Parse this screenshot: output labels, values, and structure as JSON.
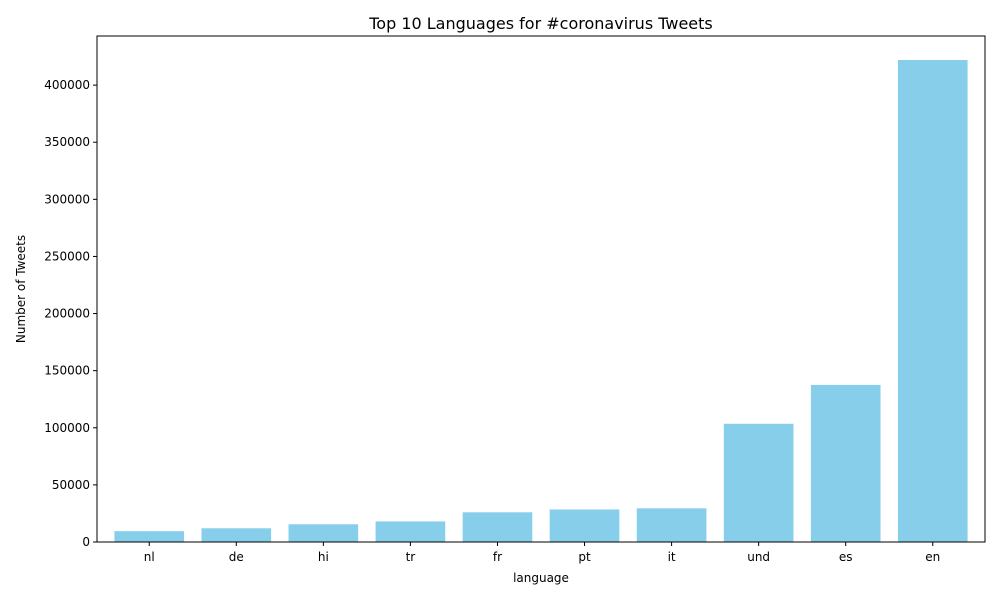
{
  "chart_data": {
    "type": "bar",
    "title": "Top 10 Languages for #coronavirus Tweets",
    "xlabel": "language",
    "ylabel": "Number of Tweets",
    "categories": [
      "nl",
      "de",
      "hi",
      "tr",
      "fr",
      "pt",
      "it",
      "und",
      "es",
      "en"
    ],
    "values": [
      9500,
      12000,
      15500,
      18000,
      26000,
      28500,
      29500,
      103500,
      137500,
      422000
    ],
    "ylim": [
      0,
      443000
    ],
    "yticks": [
      0,
      50000,
      100000,
      150000,
      200000,
      250000,
      300000,
      350000,
      400000
    ],
    "grid": false,
    "legend": "none",
    "bar_color": "#87ceeb"
  }
}
